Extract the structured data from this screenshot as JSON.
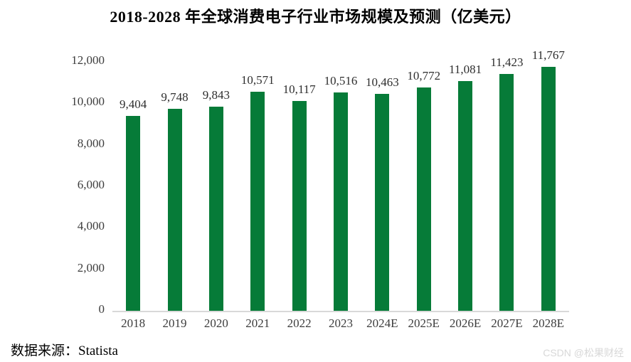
{
  "source": "数据来源：Statista",
  "watermark": "CSDN @松果财经",
  "colors": {
    "bar": "#067B38",
    "axis_line": "#D9D9D9",
    "value_label_text": "#2E2E2E",
    "tick_text": "#3D3D3D",
    "watermark_text": "#D8D8D8",
    "title_text": "#000000"
  },
  "chart_data": {
    "type": "bar",
    "title": "2018-2028 年全球消费电子行业市场规模及预测（亿美元）",
    "categories": [
      "2018",
      "2019",
      "2020",
      "2021",
      "2022",
      "2023",
      "2024E",
      "2025E",
      "2026E",
      "2027E",
      "2028E"
    ],
    "values": [
      9404,
      9748,
      9843,
      10571,
      10117,
      10516,
      10463,
      10772,
      11081,
      11423,
      11767
    ],
    "value_labels": [
      "9,404",
      "9,748",
      "9,843",
      "10,571",
      "10,117",
      "10,516",
      "10,463",
      "10,772",
      "11,081",
      "11,423",
      "11,767"
    ],
    "xlabel": "",
    "ylabel": "",
    "ylim": [
      0,
      12000
    ],
    "ytick_step": 2000,
    "ytick_labels": [
      "0",
      "2,000",
      "4,000",
      "6,000",
      "8,000",
      "10,000",
      "12,000"
    ],
    "grid": false,
    "legend": false,
    "bar_color": "#067B38"
  }
}
